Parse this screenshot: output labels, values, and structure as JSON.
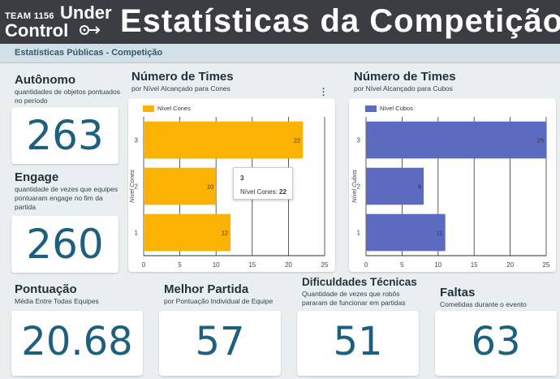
{
  "header": {
    "logo_team": "TEAM 1156",
    "logo_under": "Under",
    "logo_control": "Control",
    "title": "Estatísticas da Competição"
  },
  "subbar": {
    "label": "Estatísticas Públicas - Competição"
  },
  "autonomo": {
    "title": "Autônomo",
    "desc": "quantidades de objetos pontuados no período",
    "value": "263"
  },
  "engage": {
    "title": "Engage",
    "desc": "quantidade de vezes que equipes pontuaram engage no fim da partida",
    "value": "260"
  },
  "pontuacao": {
    "title": "Pontuação",
    "desc": "Média Entre Todas Equipes",
    "value": "20.68"
  },
  "melhor": {
    "title": "Melhor Partida",
    "desc": "por Pontuação Individual de Equipe",
    "value": "57"
  },
  "dificuldades": {
    "title": "Dificuldades Técnicas",
    "desc": "Quantidade de vezes que robôs pararam de funcionar em partidas",
    "value": "51"
  },
  "faltas": {
    "title": "Faltas",
    "desc": "Cometidas durante o evento",
    "value": "63"
  },
  "chart_cones_header": {
    "title": "Número de Times",
    "subtitle": "por Nível Alcançado para Cones"
  },
  "chart_cubos_header": {
    "title": "Número de Times",
    "subtitle": "por Nível Alcançado para Cubos"
  },
  "tooltip": {
    "title": "3",
    "label": "Nível Cones:",
    "value": "22"
  },
  "icons": {
    "menu": "more-vert-icon",
    "logo": "gear-icon"
  },
  "colors": {
    "header": "#3b3d43",
    "cones": "#fbb202",
    "cubos": "#5c6bc0",
    "kpi": "#1d5f7e"
  },
  "chart_data": [
    {
      "type": "bar",
      "orientation": "horizontal",
      "title": "Número de Times",
      "subtitle": "por Nível Alcançado para Cones",
      "categories": [
        "3",
        "2",
        "1"
      ],
      "series": [
        {
          "name": "Nível Cones",
          "values": [
            22,
            10,
            12
          ]
        }
      ],
      "ylabel": "Nível Cones",
      "xlim": [
        0,
        25
      ],
      "xticks": [
        0,
        5,
        10,
        15,
        20,
        25
      ],
      "grid": true,
      "legend": "top-left",
      "color": "#fbb202"
    },
    {
      "type": "bar",
      "orientation": "horizontal",
      "title": "Número de Times",
      "subtitle": "por Nível Alcançado para Cubos",
      "categories": [
        "3",
        "2",
        "1"
      ],
      "series": [
        {
          "name": "Nível Cubos",
          "values": [
            25,
            8,
            11
          ]
        }
      ],
      "ylabel": "Nível Cubos",
      "xlim": [
        0,
        25
      ],
      "xticks": [
        0,
        5,
        10,
        15,
        20,
        25
      ],
      "grid": true,
      "legend": "top-left",
      "color": "#5c6bc0"
    }
  ]
}
